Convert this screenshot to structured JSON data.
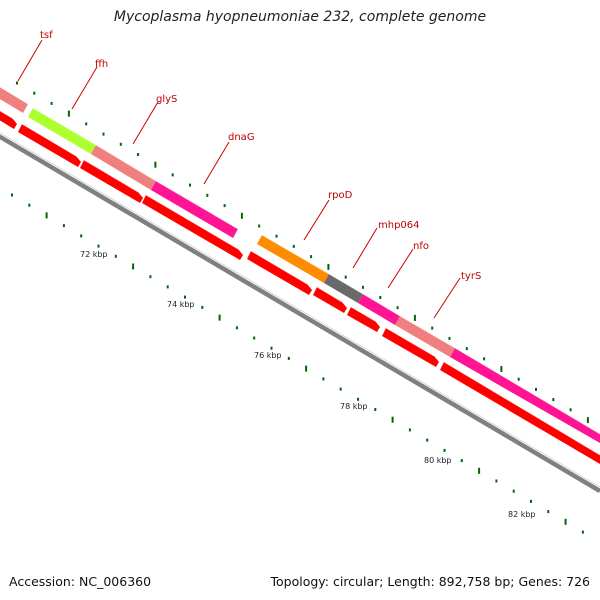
{
  "title": "Mycoplasma hyopneumoniae 232, complete genome",
  "footer": {
    "accession": "Accession: NC_006360",
    "summary": "Topology: circular; Length: 892,758 bp; Genes: 726"
  },
  "colors": {
    "background": "#ffffff",
    "backbone": "#7f7f7f",
    "cds_forward": "#ff0000",
    "gene_label": "#cc0000",
    "tick": "#006600"
  },
  "gene_labels": [
    "tsf",
    "ffh",
    "glyS",
    "dnaG",
    "rpoD",
    "mhp064",
    "nfo",
    "tyrS"
  ],
  "kbp_labels": [
    "72 kbp",
    "74 kbp",
    "76 kbp",
    "78 kbp",
    "80 kbp",
    "82 kbp"
  ]
}
